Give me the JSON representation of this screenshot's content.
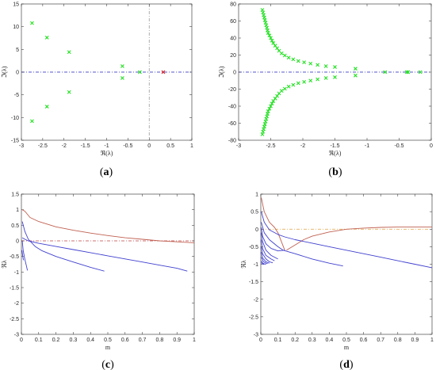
{
  "chart_data": [
    {
      "panel_label": "a",
      "type": "scatter",
      "xlabel": "ℜ(λ)",
      "ylabel": "ℑ(λ)",
      "xlim": [
        -3,
        1
      ],
      "ylim": [
        -15,
        15
      ],
      "xticks": [
        -3,
        -2.5,
        -2,
        -1.5,
        -1,
        -0.5,
        0,
        0.5,
        1
      ],
      "yticks": [
        -15,
        -10,
        -5,
        0,
        5,
        10,
        15
      ],
      "grid": false,
      "reference_lines": [
        {
          "orientation": "horizontal",
          "value": 0,
          "color": "#1f1fbf",
          "style": "dash-dot"
        },
        {
          "orientation": "vertical",
          "value": 0,
          "color": "#999999",
          "style": "dash-dot"
        }
      ],
      "series": [
        {
          "color": "#22e022",
          "marker": "x",
          "x": [
            -2.75,
            -2.75,
            -2.4,
            -2.4,
            -1.88,
            -1.88,
            -0.63,
            -0.63,
            -0.22
          ],
          "y": [
            10.8,
            -10.8,
            7.6,
            -7.6,
            4.4,
            -4.4,
            1.3,
            -1.3,
            0
          ]
        },
        {
          "color": "#e02020",
          "marker": "x",
          "x": [
            0.33
          ],
          "y": [
            0
          ]
        }
      ]
    },
    {
      "panel_label": "b",
      "type": "scatter",
      "xlabel": "ℜ(λ)",
      "ylabel": "ℑ(λ)",
      "xlim": [
        -3,
        0
      ],
      "ylim": [
        -80,
        80
      ],
      "xticks": [
        -3,
        -2.5,
        -2,
        -1.5,
        -1,
        -0.5,
        0
      ],
      "yticks": [
        -80,
        -60,
        -40,
        -20,
        0,
        20,
        40,
        60,
        80
      ],
      "grid": false,
      "reference_lines": [
        {
          "orientation": "horizontal",
          "value": 0,
          "color": "#1f1fbf",
          "style": "dash-dot"
        }
      ],
      "series": [
        {
          "color": "#22e022",
          "marker": "x",
          "x": [
            -2.63,
            -2.62,
            -2.61,
            -2.6,
            -2.59,
            -2.58,
            -2.57,
            -2.56,
            -2.55,
            -2.54,
            -2.52,
            -2.5,
            -2.48,
            -2.46,
            -2.43,
            -2.4,
            -2.37,
            -2.33,
            -2.28,
            -2.22,
            -2.15,
            -2.07,
            -1.98,
            -1.88,
            -1.77,
            -1.64,
            -1.5,
            -1.18,
            -2.63,
            -2.62,
            -2.61,
            -2.6,
            -2.59,
            -2.58,
            -2.57,
            -2.56,
            -2.55,
            -2.54,
            -2.52,
            -2.5,
            -2.48,
            -2.46,
            -2.43,
            -2.4,
            -2.37,
            -2.33,
            -2.28,
            -2.22,
            -2.15,
            -2.07,
            -1.98,
            -1.88,
            -1.77,
            -1.64,
            -1.5,
            -1.18,
            -0.72,
            -0.38,
            -0.36,
            -0.17
          ],
          "y": [
            73,
            70,
            67,
            64,
            61,
            58,
            55,
            52,
            49,
            46,
            43,
            40,
            37,
            34,
            31,
            28,
            25,
            22,
            19.5,
            17,
            15,
            13,
            11.5,
            10,
            8.5,
            7,
            6,
            4,
            -73,
            -70,
            -67,
            -64,
            -61,
            -58,
            -55,
            -52,
            -49,
            -46,
            -43,
            -40,
            -37,
            -34,
            -31,
            -28,
            -25,
            -22,
            -19.5,
            -17,
            -15,
            -13,
            -11.5,
            -10,
            -8.5,
            -7,
            -6,
            -4,
            0,
            0,
            0,
            0
          ]
        }
      ]
    },
    {
      "panel_label": "c",
      "type": "line",
      "xlabel": "m",
      "ylabel": "ℜλ",
      "xlim": [
        0,
        1
      ],
      "ylim": [
        -3,
        1.5
      ],
      "xticks": [
        0,
        0.1,
        0.2,
        0.3,
        0.4,
        0.5,
        0.6,
        0.7,
        0.8,
        0.9,
        1
      ],
      "yticks": [
        -3,
        -2.5,
        -2,
        -1.5,
        -1,
        -0.5,
        0,
        0.5,
        1,
        1.5
      ],
      "grid": false,
      "reference_lines": [
        {
          "orientation": "horizontal",
          "value": 0,
          "color": "#c04040",
          "style": "dash-dot"
        }
      ],
      "series": [
        {
          "color": "#c06050",
          "x": [
            0.005,
            0.02,
            0.05,
            0.1,
            0.2,
            0.3,
            0.4,
            0.5,
            0.6,
            0.7,
            0.8,
            0.9,
            1.0
          ],
          "y": [
            1.0,
            0.95,
            0.75,
            0.62,
            0.45,
            0.34,
            0.25,
            0.17,
            0.1,
            0.05,
            0.0,
            -0.03,
            -0.06
          ]
        },
        {
          "color": "#4040d0",
          "x": [
            0.005,
            0.02,
            0.04,
            0.1,
            0.2,
            0.3,
            0.4,
            0.5,
            0.6,
            0.7,
            0.8,
            0.9,
            0.96
          ],
          "y": [
            0.1,
            0.05,
            0.0,
            -0.08,
            -0.18,
            -0.28,
            -0.38,
            -0.48,
            -0.58,
            -0.68,
            -0.78,
            -0.88,
            -0.97
          ]
        },
        {
          "color": "#4040d0",
          "x": [
            0.005,
            0.02,
            0.04,
            0.08,
            0.12,
            0.2,
            0.3,
            0.4,
            0.48
          ],
          "y": [
            0.62,
            0.3,
            0.05,
            -0.18,
            -0.32,
            -0.5,
            -0.68,
            -0.85,
            -0.97
          ]
        },
        {
          "color": "#4040d0",
          "x": [
            0.005,
            0.01,
            0.02,
            0.03,
            0.035
          ],
          "y": [
            0.0,
            -0.3,
            -0.6,
            -0.82,
            -0.95
          ]
        },
        {
          "color": "#4040d0",
          "x": [
            0.003,
            0.008,
            0.012
          ],
          "y": [
            -0.3,
            -0.5,
            -0.62
          ]
        }
      ]
    },
    {
      "panel_label": "d",
      "type": "line",
      "xlabel": "m",
      "ylabel": "ℜλ",
      "xlim": [
        0,
        1
      ],
      "ylim": [
        -3,
        1
      ],
      "xticks": [
        0,
        0.1,
        0.2,
        0.3,
        0.4,
        0.5,
        0.6,
        0.7,
        0.8,
        0.9,
        1
      ],
      "yticks": [
        -3,
        -2.5,
        -2,
        -1.5,
        -1,
        -0.5,
        0,
        0.5,
        1
      ],
      "grid": false,
      "reference_lines": [
        {
          "orientation": "horizontal",
          "value": 0,
          "color": "#e0a040",
          "style": "dash-dot"
        }
      ],
      "series": [
        {
          "color": "#c06050",
          "x": [
            0.003,
            0.02,
            0.05,
            0.08,
            0.1,
            0.14
          ],
          "y": [
            0.9,
            0.5,
            0.2,
            0.05,
            -0.1,
            -0.6
          ]
        },
        {
          "color": "#c06050",
          "x": [
            0.15,
            0.2,
            0.25,
            0.3,
            0.4,
            0.5,
            0.6,
            0.7,
            0.8,
            0.9,
            1.0
          ],
          "y": [
            -0.6,
            -0.45,
            -0.3,
            -0.2,
            -0.08,
            0.0,
            0.03,
            0.05,
            0.06,
            0.06,
            0.06
          ]
        },
        {
          "color": "#4040d0",
          "x": [
            0.003,
            0.02,
            0.05,
            0.1,
            0.14,
            0.2,
            0.3,
            0.4,
            0.5,
            0.6,
            0.7,
            0.8,
            0.9,
            1.0
          ],
          "y": [
            0.5,
            0.2,
            -0.02,
            -0.15,
            -0.22,
            -0.3,
            -0.4,
            -0.5,
            -0.6,
            -0.7,
            -0.8,
            -0.9,
            -1.0,
            -1.1
          ]
        },
        {
          "color": "#4040d0",
          "x": [
            0.003,
            0.02,
            0.05,
            0.1,
            0.13,
            0.2,
            0.3,
            0.4,
            0.48
          ],
          "y": [
            0.2,
            -0.1,
            -0.3,
            -0.5,
            -0.6,
            -0.7,
            -0.85,
            -0.97,
            -1.05
          ]
        },
        {
          "color": "#4040d0",
          "x": [
            0.003,
            0.01,
            0.03,
            0.06,
            0.1,
            0.14
          ],
          "y": [
            0.05,
            -0.2,
            -0.42,
            -0.55,
            -0.62,
            -0.6
          ]
        },
        {
          "color": "#4040d0",
          "x": [
            0.003,
            0.01,
            0.03,
            0.06,
            0.1
          ],
          "y": [
            -0.1,
            -0.35,
            -0.6,
            -0.75,
            -0.85
          ]
        },
        {
          "color": "#4040d0",
          "x": [
            0.003,
            0.01,
            0.03,
            0.06,
            0.08
          ],
          "y": [
            -0.3,
            -0.55,
            -0.75,
            -0.85,
            -0.9
          ]
        },
        {
          "color": "#4040d0",
          "x": [
            0.003,
            0.01,
            0.03,
            0.05,
            0.07
          ],
          "y": [
            -0.5,
            -0.7,
            -0.85,
            -0.93,
            -0.96
          ]
        },
        {
          "color": "#4040d0",
          "x": [
            0.003,
            0.01,
            0.03,
            0.05
          ],
          "y": [
            -0.65,
            -0.82,
            -0.93,
            -0.97
          ]
        },
        {
          "color": "#4040d0",
          "x": [
            0.003,
            0.015,
            0.03,
            0.04
          ],
          "y": [
            -0.8,
            -0.92,
            -0.97,
            -0.98
          ]
        },
        {
          "color": "#4040d0",
          "x": [
            0.003,
            0.01,
            0.02,
            0.03
          ],
          "y": [
            -0.9,
            -0.96,
            -0.99,
            -1.0
          ]
        },
        {
          "color": "#4040d0",
          "x": [
            0.003,
            0.01,
            0.015,
            0.02
          ],
          "y": [
            -0.95,
            -0.99,
            -1.0,
            -1.0
          ]
        }
      ]
    }
  ]
}
